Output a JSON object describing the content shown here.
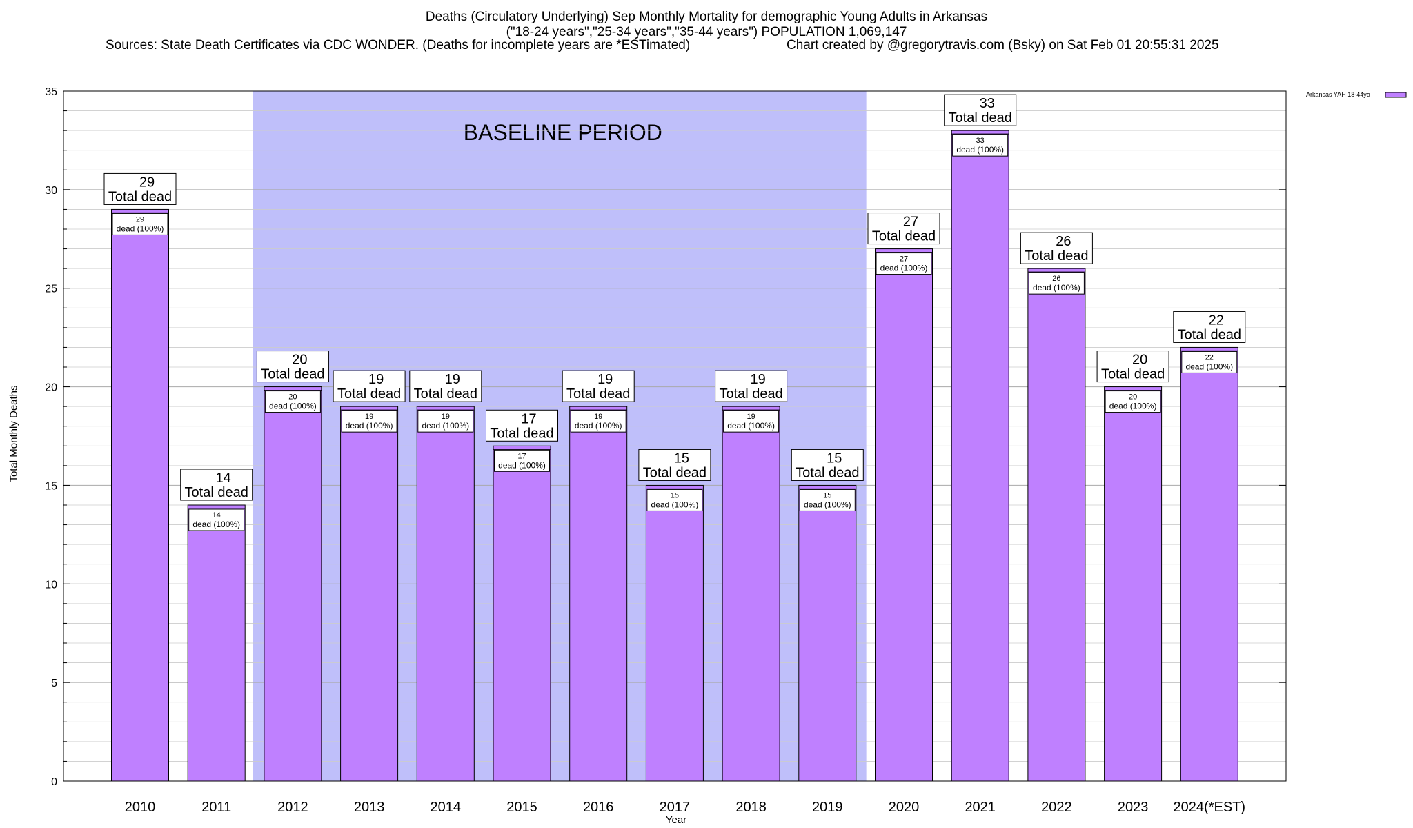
{
  "header": {
    "line1": "Deaths (Circulatory Underlying) Sep Monthly Mortality for demographic Young Adults in Arkansas",
    "line2": "(\"18-24 years\",\"25-34 years\",\"35-44 years\") POPULATION 1,069,147",
    "line3a": "Sources: State Death Certificates via CDC WONDER. (Deaths for incomplete years are *ESTimated)",
    "line3b": "Chart created by @gregorytravis.com (Bsky) on Sat Feb 01 20:55:31 2025"
  },
  "chart_data": {
    "type": "bar",
    "title": "Deaths (Circulatory Underlying) Sep Monthly Mortality for demographic Young Adults in Arkansas",
    "xlabel": "Year",
    "ylabel": "Total Monthly Deaths",
    "ylim": [
      0,
      35
    ],
    "yticks": [
      0,
      5,
      10,
      15,
      20,
      25,
      30,
      35
    ],
    "grid": true,
    "legend_position": "top-right",
    "categories": [
      "2010",
      "2011",
      "2012",
      "2013",
      "2014",
      "2015",
      "2016",
      "2017",
      "2018",
      "2019",
      "2020",
      "2021",
      "2022",
      "2023",
      "2024(*EST)"
    ],
    "series": [
      {
        "name": "Arkansas YAH 18-44yo",
        "values": [
          29,
          14,
          20,
          19,
          19,
          17,
          19,
          15,
          19,
          15,
          27,
          33,
          26,
          20,
          22
        ]
      }
    ],
    "bar_color": "#bf80ff",
    "total_label_suffix": "Total dead",
    "inner_label_suffix": "dead (100%)",
    "shaded_region": {
      "label": "BASELINE PERIOD",
      "from_category": "2012",
      "to_category": "2019",
      "color": "#bfbffa"
    }
  }
}
